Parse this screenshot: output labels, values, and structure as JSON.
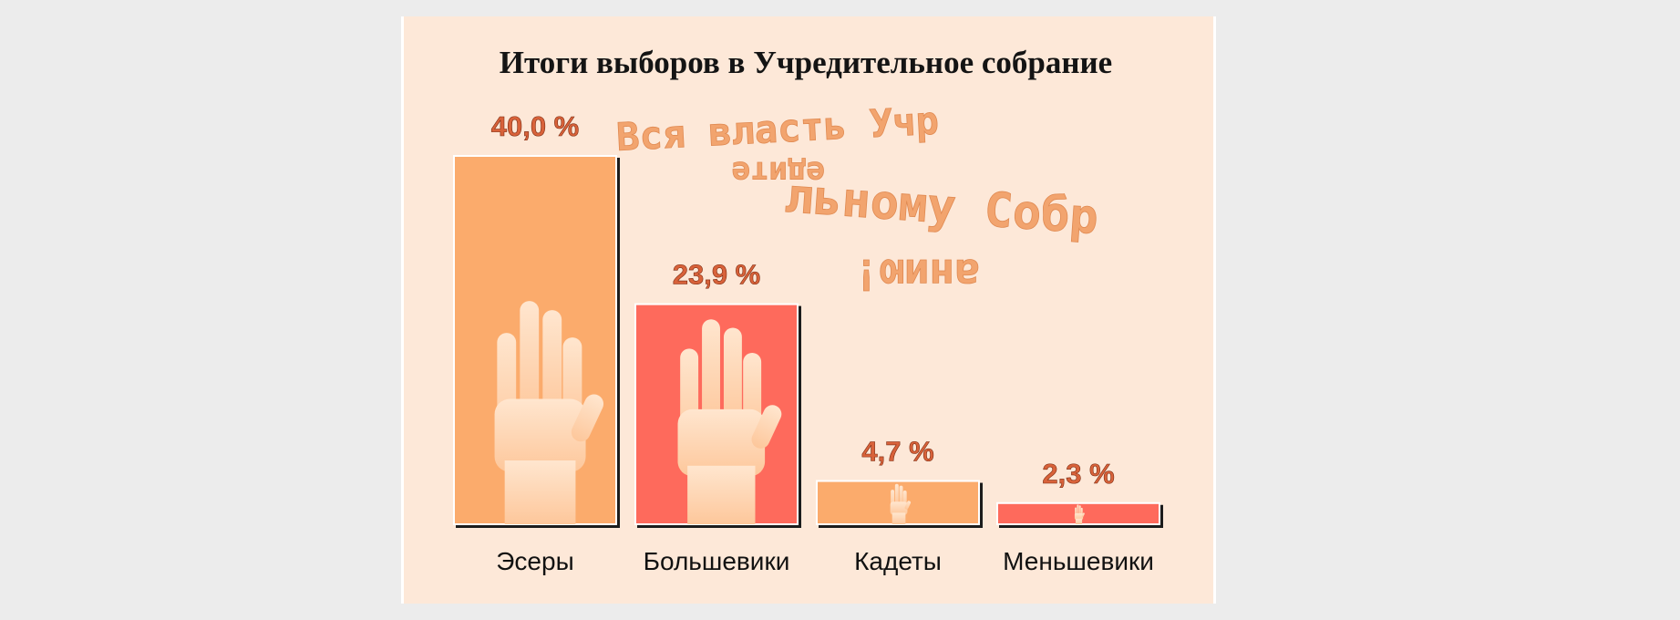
{
  "colors": {
    "background": "#fde8d8",
    "bar_orange": "#fbab6c",
    "bar_red": "#fe6b5c",
    "hand": "#ffd9b8",
    "value_label": "#d8623a",
    "slogan": "#f2a46e"
  },
  "slogan": {
    "line1": "Вся власть Учр",
    "line2": "едите",
    "line3": "льному Собр",
    "line4": "анию!"
  },
  "chart_data": {
    "type": "bar",
    "title": "Итоги выборов в Учредительное собрание",
    "categories": [
      "Эсеры",
      "Большевики",
      "Кадеты",
      "Меньшевики"
    ],
    "values": [
      40.0,
      23.9,
      4.7,
      2.3
    ],
    "value_labels": [
      "40,0 %",
      "23,9 %",
      "4,7 %",
      "2,3 %"
    ],
    "bar_colors": [
      "#fbab6c",
      "#fe6b5c",
      "#fbab6c",
      "#fe6b5c"
    ],
    "unit": "%",
    "xlabel": "",
    "ylabel": "",
    "ylim": [
      0,
      40
    ],
    "grid": false,
    "legend": "none"
  }
}
